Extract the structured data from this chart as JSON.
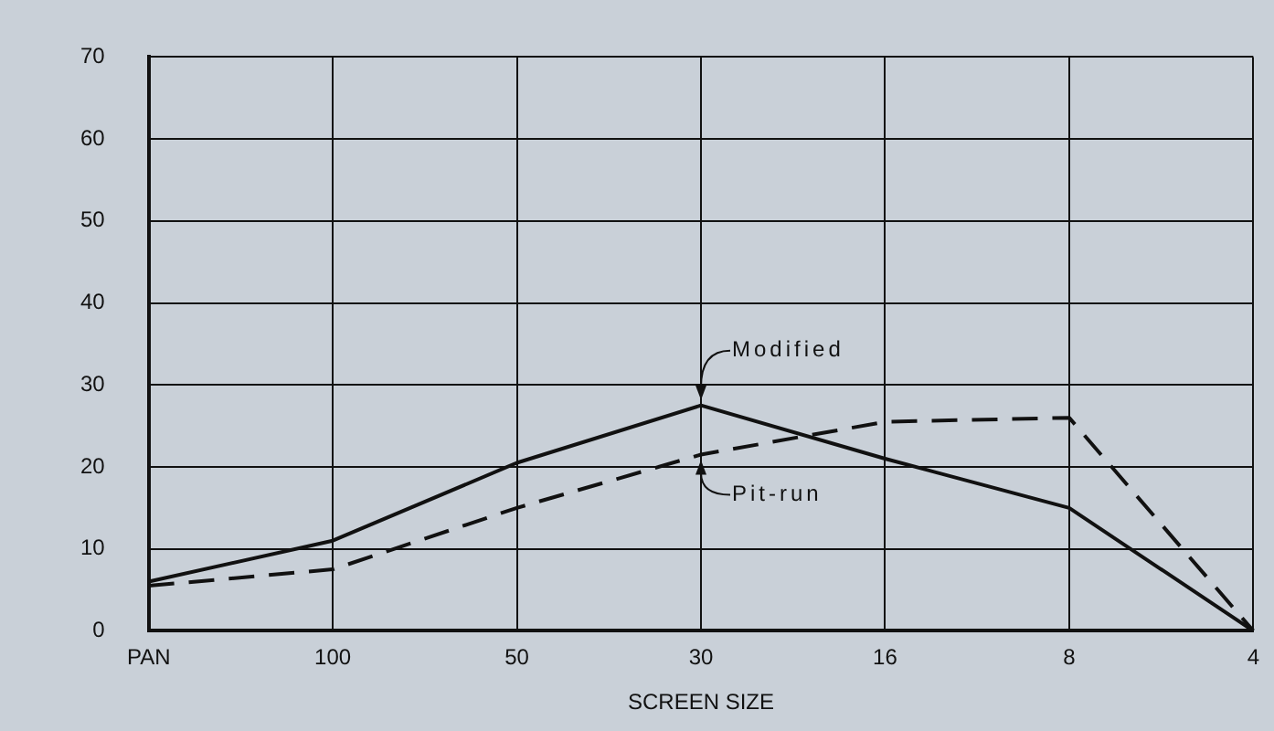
{
  "chart_data": {
    "type": "line",
    "xlabel": "SCREEN SIZE",
    "categories": [
      "PAN",
      "100",
      "50",
      "30",
      "16",
      "8",
      "4"
    ],
    "series": [
      {
        "color": "#111111",
        "line_style": "solid",
        "values": [
          6,
          11,
          20.5,
          27.5,
          21,
          15,
          0
        ]
      },
      {
        "color": "#111111",
        "line_style": "dashed",
        "values": [
          5.5,
          7.5,
          15,
          21.5,
          25.5,
          26,
          0
        ]
      }
    ],
    "ylim": [
      0,
      70
    ],
    "yticks": [
      0,
      10,
      20,
      30,
      40,
      50,
      60,
      70
    ],
    "grid": true,
    "legend": false,
    "marker": "none",
    "annotations": [
      {
        "text": "Modified",
        "x": "30",
        "y": 27.5
      },
      {
        "text": "Pit-run",
        "x": "30",
        "y": 21.5
      }
    ]
  }
}
